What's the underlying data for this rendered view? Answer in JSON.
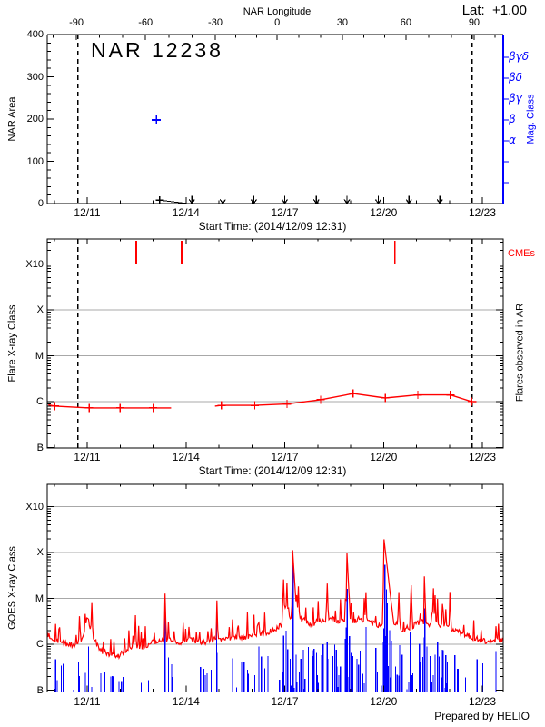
{
  "header": {
    "lat_text": "Lat:  +1.00"
  },
  "footer": {
    "credit": "Prepared by HELIO"
  },
  "colors": {
    "red": "#ff0000",
    "blue": "#0000ff",
    "grid_gray": "#a8a8a8",
    "frame_black": "#000000"
  },
  "time_axis": {
    "title": "Start Time: (2014/12/09 12:31)",
    "tick_labels": [
      "12/11",
      "12/14",
      "12/17",
      "12/20",
      "12/23"
    ],
    "tick_days": [
      11,
      14,
      17,
      20,
      23
    ],
    "day_min": 9.79,
    "day_max": 23.63
  },
  "limb_days": [
    10.72,
    22.69
  ],
  "chart_data": [
    {
      "type": "scatter",
      "panel": "nar-area",
      "title": "NAR 12238",
      "ylabel": "NAR Area",
      "ylim": [
        0,
        400
      ],
      "y_ticks": [
        "0",
        "100",
        "200",
        "300",
        "400"
      ],
      "top_axis": {
        "title": "NAR Longitude",
        "ticks": [
          {
            "deg": "-90",
            "day": 10.67
          },
          {
            "deg": "-60",
            "day": 12.77
          },
          {
            "deg": "-30",
            "day": 14.89
          },
          {
            "deg": "0",
            "day": 16.77
          },
          {
            "deg": "30",
            "day": 18.75
          },
          {
            "deg": "60",
            "day": 20.68
          },
          {
            "deg": "90",
            "day": 22.75
          }
        ]
      },
      "right_axis": {
        "label": "Mag. Class",
        "tick_labels": [
          "βγδ",
          "βδ",
          "βγ",
          "β",
          "α",
          "",
          ""
        ]
      },
      "area_points": [
        {
          "day": 13.2,
          "area": 8
        }
      ],
      "area_line_end_day": 14.05,
      "mag_points": [
        {
          "day": 13.1,
          "class": "β",
          "tick_index": 3
        }
      ],
      "zero_marker_days": [
        14.18,
        15.12,
        16.06,
        17.0,
        17.96,
        18.89,
        19.84,
        20.77,
        21.71
      ]
    },
    {
      "type": "line",
      "panel": "flares-in-ar",
      "ylabel": "Flare X-ray Class",
      "right_label": "Flares observed in AR",
      "cme_label": "CMEs",
      "y_tick_labels": [
        "X10",
        "X",
        "M",
        "C",
        "B"
      ],
      "cme_days": [
        12.49,
        13.87,
        20.35
      ],
      "flare_segments": [
        [
          {
            "day": 9.82,
            "class": "B8.5",
            "marker": false
          },
          {
            "day": 10.02,
            "class": "B8.0",
            "marker": true
          },
          {
            "day": 11.06,
            "class": "B7.3",
            "marker": true
          },
          {
            "day": 12.0,
            "class": "B7.3",
            "marker": true
          },
          {
            "day": 13.0,
            "class": "B7.3",
            "marker": true
          },
          {
            "day": 13.55,
            "class": "B7.3",
            "marker": false
          }
        ],
        [
          {
            "day": 14.88,
            "class": "B8.0",
            "marker": false
          },
          {
            "day": 15.08,
            "class": "B8.3",
            "marker": true
          },
          {
            "day": 16.09,
            "class": "B8.3",
            "marker": true
          },
          {
            "day": 17.07,
            "class": "B8.9",
            "marker": true
          },
          {
            "day": 18.09,
            "class": "C1.1",
            "marker": true
          },
          {
            "day": 19.08,
            "class": "C1.5",
            "marker": true
          },
          {
            "day": 20.05,
            "class": "C1.2",
            "marker": true
          },
          {
            "day": 21.04,
            "class": "C1.4",
            "marker": true
          },
          {
            "day": 22.03,
            "class": "C1.4",
            "marker": true
          },
          {
            "day": 22.68,
            "class": "C1.0",
            "marker": true
          },
          {
            "day": 22.82,
            "class": "C1.0",
            "marker": false
          }
        ]
      ]
    },
    {
      "type": "line",
      "panel": "goes-xray",
      "ylabel": "GOES X-ray Class",
      "y_tick_labels": [
        "X10",
        "X",
        "M",
        "C",
        "B"
      ],
      "level_scale": "decades relative to C level",
      "major_flares": [
        {
          "day": 9.58,
          "class": "M1.3",
          "tau": 0.03
        },
        {
          "day": 13.36,
          "class": "M1.7",
          "tau": 0.04
        },
        {
          "day": 14.93,
          "class": "M1.6",
          "tau": 0.04
        },
        {
          "day": 17.25,
          "class": "M8.7",
          "tau": 0.09
        },
        {
          "day": 18.9,
          "class": "M6.9",
          "tau": 0.07
        },
        {
          "day": 20.02,
          "class": "X1.8",
          "tau": 0.16
        },
        {
          "day": 21.25,
          "class": "M1.9",
          "tau": 0.05
        },
        {
          "day": 21.78,
          "class": "M1.2",
          "tau": 0.05
        },
        {
          "day": 22.02,
          "class": "M1.1",
          "tau": 0.05
        }
      ],
      "background_envelope": [
        [
          9.55,
          0.5
        ],
        [
          9.7,
          0.3
        ],
        [
          9.95,
          0.12
        ],
        [
          10.3,
          0.02
        ],
        [
          10.6,
          -0.02
        ],
        [
          10.85,
          0.1
        ],
        [
          11.0,
          0.62
        ],
        [
          11.12,
          0.3
        ],
        [
          11.35,
          -0.1
        ],
        [
          11.6,
          -0.2
        ],
        [
          11.95,
          -0.25
        ],
        [
          12.2,
          -0.12
        ],
        [
          12.45,
          0.0
        ],
        [
          12.7,
          -0.08
        ],
        [
          12.95,
          0.05
        ],
        [
          13.2,
          0.08
        ],
        [
          13.55,
          0.1
        ],
        [
          13.9,
          0.02
        ],
        [
          14.15,
          0.1
        ],
        [
          14.55,
          0.05
        ],
        [
          14.95,
          0.12
        ],
        [
          15.3,
          0.1
        ],
        [
          15.7,
          0.15
        ],
        [
          16.1,
          0.2
        ],
        [
          16.5,
          0.25
        ],
        [
          16.9,
          0.42
        ],
        [
          17.15,
          0.6
        ],
        [
          17.45,
          0.55
        ],
        [
          17.8,
          0.45
        ],
        [
          18.1,
          0.5
        ],
        [
          18.4,
          0.55
        ],
        [
          18.7,
          0.5
        ],
        [
          19.0,
          0.5
        ],
        [
          19.3,
          0.55
        ],
        [
          19.65,
          0.45
        ],
        [
          19.95,
          0.4
        ],
        [
          20.1,
          0.8
        ],
        [
          20.3,
          0.5
        ],
        [
          20.55,
          0.3
        ],
        [
          20.85,
          0.38
        ],
        [
          21.15,
          0.5
        ],
        [
          21.5,
          0.42
        ],
        [
          21.85,
          0.42
        ],
        [
          22.15,
          0.3
        ],
        [
          22.5,
          0.2
        ],
        [
          22.8,
          0.12
        ],
        [
          23.1,
          0.06
        ],
        [
          23.63,
          0.1
        ]
      ],
      "blue_channel_major": [
        {
          "day": 13.36,
          "top_class": "C4.0"
        },
        {
          "day": 14.93,
          "top_class": "C3.2"
        },
        {
          "day": 17.25,
          "top_class": "M5.4"
        },
        {
          "day": 18.9,
          "top_class": "M1.6"
        },
        {
          "day": 20.04,
          "top_class": "M5.4"
        },
        {
          "day": 21.25,
          "top_class": "C6.0"
        }
      ]
    }
  ]
}
